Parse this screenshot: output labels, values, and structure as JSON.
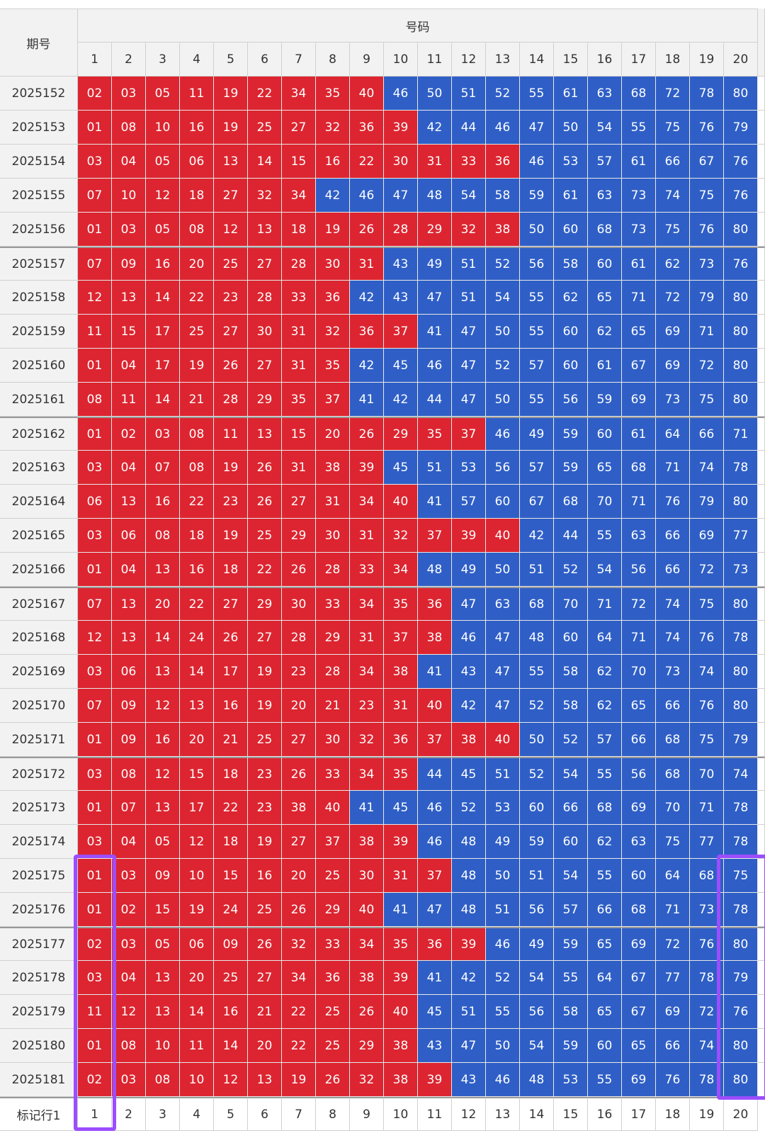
{
  "table": {
    "header": {
      "period": "期号",
      "numbers": "号码",
      "columns": [
        1,
        2,
        3,
        4,
        5,
        6,
        7,
        8,
        9,
        10,
        11,
        12,
        13,
        14,
        15,
        16,
        17,
        18,
        19,
        20
      ]
    },
    "rows": [
      {
        "period": "2025152",
        "numbers": [
          "02",
          "03",
          "05",
          "11",
          "19",
          "22",
          "34",
          "35",
          "40",
          "46",
          "50",
          "51",
          "52",
          "55",
          "61",
          "63",
          "68",
          "72",
          "78",
          "80"
        ]
      },
      {
        "period": "2025153",
        "numbers": [
          "01",
          "08",
          "10",
          "16",
          "19",
          "25",
          "27",
          "32",
          "36",
          "39",
          "42",
          "44",
          "46",
          "47",
          "50",
          "54",
          "55",
          "75",
          "76",
          "79"
        ]
      },
      {
        "period": "2025154",
        "numbers": [
          "03",
          "04",
          "05",
          "06",
          "13",
          "14",
          "15",
          "16",
          "22",
          "30",
          "31",
          "33",
          "36",
          "46",
          "53",
          "57",
          "61",
          "66",
          "67",
          "76"
        ]
      },
      {
        "period": "2025155",
        "numbers": [
          "07",
          "10",
          "12",
          "18",
          "27",
          "32",
          "34",
          "42",
          "46",
          "47",
          "48",
          "54",
          "58",
          "59",
          "61",
          "63",
          "73",
          "74",
          "75",
          "76"
        ]
      },
      {
        "period": "2025156",
        "numbers": [
          "01",
          "03",
          "05",
          "08",
          "12",
          "13",
          "18",
          "19",
          "26",
          "28",
          "29",
          "32",
          "38",
          "50",
          "60",
          "68",
          "73",
          "75",
          "76",
          "80"
        ]
      },
      {
        "period": "2025157",
        "numbers": [
          "07",
          "09",
          "16",
          "20",
          "25",
          "27",
          "28",
          "30",
          "31",
          "43",
          "49",
          "51",
          "52",
          "56",
          "58",
          "60",
          "61",
          "62",
          "73",
          "76"
        ]
      },
      {
        "period": "2025158",
        "numbers": [
          "12",
          "13",
          "14",
          "22",
          "23",
          "28",
          "33",
          "36",
          "42",
          "43",
          "47",
          "51",
          "54",
          "55",
          "62",
          "65",
          "71",
          "72",
          "79",
          "80"
        ]
      },
      {
        "period": "2025159",
        "numbers": [
          "11",
          "15",
          "17",
          "25",
          "27",
          "30",
          "31",
          "32",
          "36",
          "37",
          "41",
          "47",
          "50",
          "55",
          "60",
          "62",
          "65",
          "69",
          "71",
          "80"
        ]
      },
      {
        "period": "2025160",
        "numbers": [
          "01",
          "04",
          "17",
          "19",
          "26",
          "27",
          "31",
          "35",
          "42",
          "45",
          "46",
          "47",
          "52",
          "57",
          "60",
          "61",
          "67",
          "69",
          "72",
          "80"
        ]
      },
      {
        "period": "2025161",
        "numbers": [
          "08",
          "11",
          "14",
          "21",
          "28",
          "29",
          "35",
          "37",
          "41",
          "42",
          "44",
          "47",
          "50",
          "55",
          "56",
          "59",
          "69",
          "73",
          "75",
          "80"
        ]
      },
      {
        "period": "2025162",
        "numbers": [
          "01",
          "02",
          "03",
          "08",
          "11",
          "13",
          "15",
          "20",
          "26",
          "29",
          "35",
          "37",
          "46",
          "49",
          "59",
          "60",
          "61",
          "64",
          "66",
          "71"
        ]
      },
      {
        "period": "2025163",
        "numbers": [
          "03",
          "04",
          "07",
          "08",
          "19",
          "26",
          "31",
          "38",
          "39",
          "45",
          "51",
          "53",
          "56",
          "57",
          "59",
          "65",
          "68",
          "71",
          "74",
          "78"
        ]
      },
      {
        "period": "2025164",
        "numbers": [
          "06",
          "13",
          "16",
          "22",
          "23",
          "26",
          "27",
          "31",
          "34",
          "40",
          "41",
          "57",
          "60",
          "67",
          "68",
          "70",
          "71",
          "76",
          "79",
          "80"
        ]
      },
      {
        "period": "2025165",
        "numbers": [
          "03",
          "06",
          "08",
          "18",
          "19",
          "25",
          "29",
          "30",
          "31",
          "32",
          "37",
          "39",
          "40",
          "42",
          "44",
          "55",
          "63",
          "66",
          "69",
          "77"
        ]
      },
      {
        "period": "2025166",
        "numbers": [
          "01",
          "04",
          "13",
          "16",
          "18",
          "22",
          "26",
          "28",
          "33",
          "34",
          "48",
          "49",
          "50",
          "51",
          "52",
          "54",
          "56",
          "66",
          "72",
          "73"
        ]
      },
      {
        "period": "2025167",
        "numbers": [
          "07",
          "13",
          "20",
          "22",
          "27",
          "29",
          "30",
          "33",
          "34",
          "35",
          "36",
          "47",
          "63",
          "68",
          "70",
          "71",
          "72",
          "74",
          "75",
          "80"
        ]
      },
      {
        "period": "2025168",
        "numbers": [
          "12",
          "13",
          "14",
          "24",
          "26",
          "27",
          "28",
          "29",
          "31",
          "37",
          "38",
          "46",
          "47",
          "48",
          "60",
          "64",
          "71",
          "74",
          "76",
          "78"
        ]
      },
      {
        "period": "2025169",
        "numbers": [
          "03",
          "06",
          "13",
          "14",
          "17",
          "19",
          "23",
          "28",
          "34",
          "38",
          "41",
          "43",
          "47",
          "55",
          "58",
          "62",
          "70",
          "73",
          "74",
          "80"
        ]
      },
      {
        "period": "2025170",
        "numbers": [
          "07",
          "09",
          "12",
          "13",
          "16",
          "19",
          "20",
          "21",
          "23",
          "31",
          "40",
          "42",
          "47",
          "52",
          "58",
          "62",
          "65",
          "66",
          "76",
          "80"
        ]
      },
      {
        "period": "2025171",
        "numbers": [
          "01",
          "09",
          "16",
          "20",
          "21",
          "25",
          "27",
          "30",
          "32",
          "36",
          "37",
          "38",
          "40",
          "50",
          "52",
          "57",
          "66",
          "68",
          "75",
          "79"
        ]
      },
      {
        "period": "2025172",
        "numbers": [
          "03",
          "08",
          "12",
          "15",
          "18",
          "23",
          "26",
          "33",
          "34",
          "35",
          "44",
          "45",
          "51",
          "52",
          "54",
          "55",
          "56",
          "68",
          "70",
          "74"
        ]
      },
      {
        "period": "2025173",
        "numbers": [
          "01",
          "07",
          "13",
          "17",
          "22",
          "23",
          "38",
          "40",
          "41",
          "45",
          "46",
          "52",
          "53",
          "60",
          "66",
          "68",
          "69",
          "70",
          "71",
          "78"
        ]
      },
      {
        "period": "2025174",
        "numbers": [
          "03",
          "04",
          "05",
          "12",
          "18",
          "19",
          "27",
          "37",
          "38",
          "39",
          "46",
          "48",
          "49",
          "59",
          "60",
          "62",
          "63",
          "75",
          "77",
          "78"
        ]
      },
      {
        "period": "2025175",
        "numbers": [
          "01",
          "03",
          "09",
          "10",
          "15",
          "16",
          "20",
          "25",
          "30",
          "31",
          "37",
          "48",
          "50",
          "51",
          "54",
          "55",
          "60",
          "64",
          "68",
          "75"
        ]
      },
      {
        "period": "2025176",
        "numbers": [
          "01",
          "02",
          "15",
          "19",
          "24",
          "25",
          "26",
          "29",
          "40",
          "41",
          "47",
          "48",
          "51",
          "56",
          "57",
          "66",
          "68",
          "71",
          "73",
          "78"
        ]
      },
      {
        "period": "2025177",
        "numbers": [
          "02",
          "03",
          "05",
          "06",
          "09",
          "26",
          "32",
          "33",
          "34",
          "35",
          "36",
          "39",
          "46",
          "49",
          "59",
          "65",
          "69",
          "72",
          "76",
          "80"
        ]
      },
      {
        "period": "2025178",
        "numbers": [
          "03",
          "04",
          "13",
          "20",
          "25",
          "27",
          "34",
          "36",
          "38",
          "39",
          "41",
          "42",
          "52",
          "54",
          "55",
          "64",
          "67",
          "77",
          "78",
          "79"
        ]
      },
      {
        "period": "2025179",
        "numbers": [
          "11",
          "12",
          "13",
          "14",
          "16",
          "21",
          "22",
          "25",
          "26",
          "40",
          "45",
          "51",
          "55",
          "56",
          "58",
          "65",
          "67",
          "69",
          "72",
          "76"
        ]
      },
      {
        "period": "2025180",
        "numbers": [
          "01",
          "08",
          "10",
          "11",
          "14",
          "20",
          "22",
          "25",
          "29",
          "38",
          "43",
          "47",
          "50",
          "54",
          "59",
          "60",
          "65",
          "66",
          "74",
          "80"
        ]
      },
      {
        "period": "2025181",
        "numbers": [
          "02",
          "03",
          "08",
          "10",
          "12",
          "13",
          "19",
          "26",
          "32",
          "38",
          "39",
          "43",
          "46",
          "48",
          "53",
          "55",
          "69",
          "76",
          "78",
          "80"
        ]
      }
    ],
    "footer": {
      "label": "标记行1",
      "columns": [
        1,
        2,
        3,
        4,
        5,
        6,
        7,
        8,
        9,
        10,
        11,
        12,
        13,
        14,
        15,
        16,
        17,
        18,
        19,
        20
      ]
    }
  },
  "colors": {
    "low": "#dc2530",
    "high": "#2f5fc6"
  },
  "split_at": 40
}
